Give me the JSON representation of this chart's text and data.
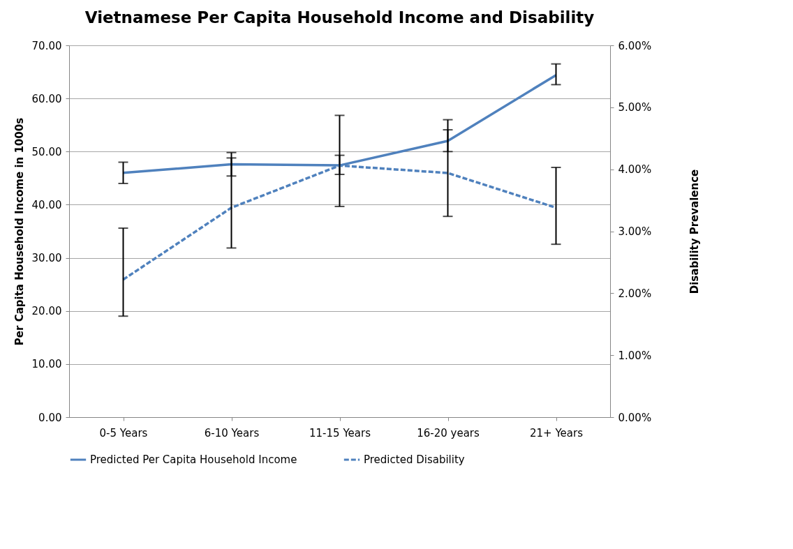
{
  "chart_data": {
    "type": "line",
    "title": "Vietnamese Per Capita Household Income and Disability",
    "categories": [
      "0-5 Years",
      "6-10 Years",
      "11-15 Years",
      "16-20 years",
      "21+ Years"
    ],
    "ylabel": "Per Capita Household Income in 1000s",
    "y2label": "Disability Prevalence",
    "ylim": [
      0,
      70
    ],
    "yticks": [
      {
        "value": 0,
        "label": "0.00"
      },
      {
        "value": 10,
        "label": "10.00"
      },
      {
        "value": 20,
        "label": "20.00"
      },
      {
        "value": 30,
        "label": "30.00"
      },
      {
        "value": 40,
        "label": "40.00"
      },
      {
        "value": 50,
        "label": "50.00"
      },
      {
        "value": 60,
        "label": "60.00"
      },
      {
        "value": 70,
        "label": "70.00"
      }
    ],
    "y2lim": [
      0,
      6
    ],
    "y2ticks": [
      {
        "value": 0,
        "label": "0.00%"
      },
      {
        "value": 1,
        "label": "1.00%"
      },
      {
        "value": 2,
        "label": "2.00%"
      },
      {
        "value": 3,
        "label": "3.00%"
      },
      {
        "value": 4,
        "label": "4.00%"
      },
      {
        "value": 5,
        "label": "5.00%"
      },
      {
        "value": 6,
        "label": "6.00%"
      }
    ],
    "grid": "y",
    "legend": "bottom",
    "marker": "none",
    "series": [
      {
        "name": "Predicted Per Capita Household Income",
        "color": "#4f81bd",
        "line_style": "solid",
        "values": [
          46.0,
          47.6,
          47.4,
          52.0,
          64.4
        ],
        "errors": [
          [
            44.0,
            48.0
          ],
          [
            45.4,
            48.8
          ],
          [
            45.7,
            49.3
          ],
          [
            50.0,
            54.1
          ],
          [
            62.6,
            66.5
          ]
        ]
      },
      {
        "name": "Predicted Disability",
        "color": "#4f81bd",
        "line_style": "dashed",
        "axis": "y2",
        "values": [
          2.22,
          3.38,
          4.06,
          3.94,
          3.38
        ],
        "errors": [
          [
            1.63,
            3.05
          ],
          [
            2.73,
            4.27
          ],
          [
            3.4,
            4.87
          ],
          [
            3.24,
            4.8
          ],
          [
            2.79,
            4.03
          ]
        ]
      }
    ]
  }
}
